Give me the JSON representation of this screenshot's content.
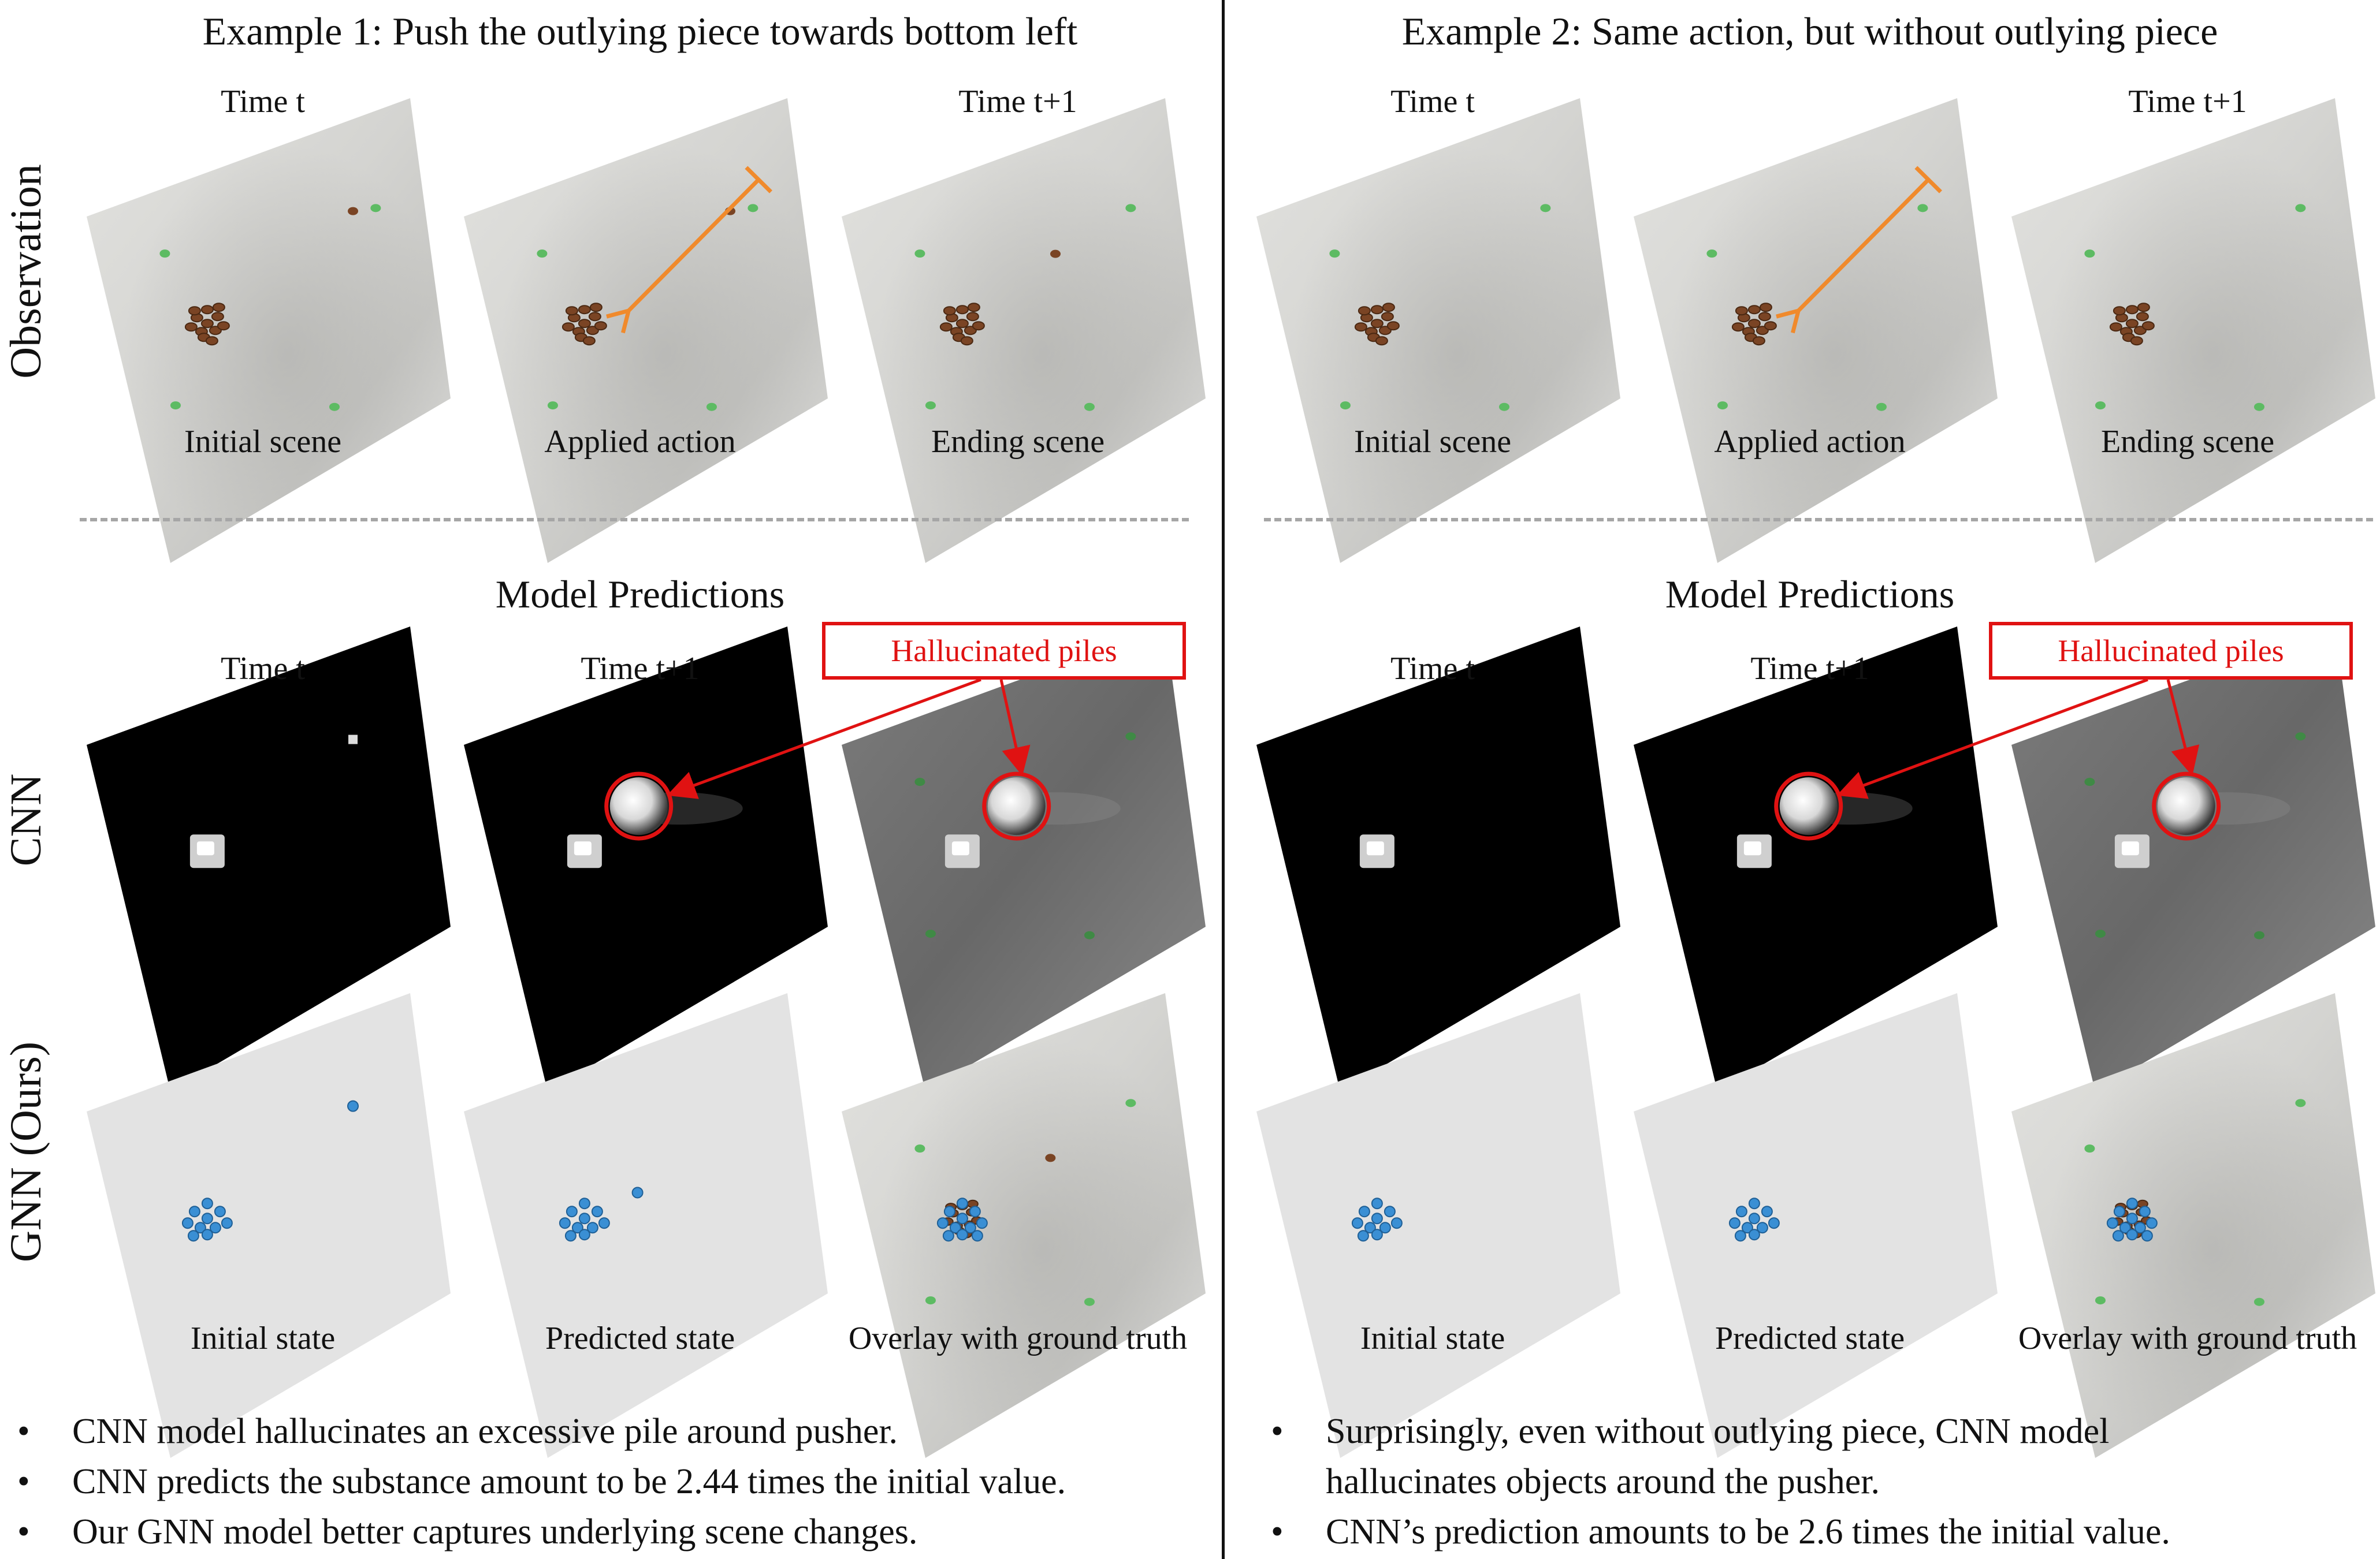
{
  "colors": {
    "accent_red": "#e01212",
    "action_arrow": "#f08a2c",
    "particle_blue": "#3a8fd4"
  },
  "examples": [
    {
      "title": "Example 1: Push the outlying piece towards bottom left",
      "time_t": "Time t",
      "time_t1": "Time t+1",
      "captions": [
        "Initial scene",
        "Applied action",
        "Ending scene"
      ],
      "predictions_title": "Model Predictions",
      "pred_time_t": "Time t",
      "pred_time_t1": "Time t+1",
      "hallucinated_label": "Hallucinated piles",
      "gnn_captions": [
        "Initial state",
        "Predicted state",
        "Overlay with ground truth"
      ],
      "bullets": [
        "CNN model hallucinates an excessive pile around pusher.",
        "CNN predicts the substance amount to be 2.44 times the initial value.",
        "Our GNN model better captures underlying scene changes."
      ]
    },
    {
      "title": "Example 2: Same action, but without outlying piece",
      "time_t": "Time t",
      "time_t1": "Time t+1",
      "captions": [
        "Initial scene",
        "Applied action",
        "Ending scene"
      ],
      "predictions_title": "Model Predictions",
      "pred_time_t": "Time t",
      "pred_time_t1": "Time t+1",
      "hallucinated_label": "Hallucinated piles",
      "gnn_captions": [
        "Initial state",
        "Predicted state",
        "Overlay with ground truth"
      ],
      "bullets": [
        "Surprisingly, even without outlying piece, CNN model",
        "hallucinates objects around the pusher.",
        "CNN’s prediction amounts to be 2.6 times the initial value."
      ]
    }
  ],
  "row_labels": {
    "observation": "Observation",
    "cnn": "CNN",
    "gnn": "GNN (Ours)"
  },
  "bullet_glyph": "•"
}
